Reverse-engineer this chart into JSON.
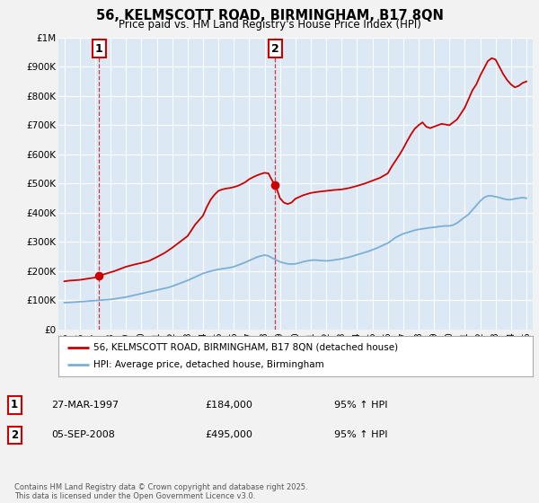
{
  "title": "56, KELMSCOTT ROAD, BIRMINGHAM, B17 8QN",
  "subtitle": "Price paid vs. HM Land Registry's House Price Index (HPI)",
  "bg_color": "#dce9f5",
  "fig_bg_color": "#f2f2f2",
  "red_color": "#cc0000",
  "blue_color": "#7bafd4",
  "grid_color": "#ffffff",
  "ylim": [
    0,
    1000000
  ],
  "yticks": [
    0,
    100000,
    200000,
    300000,
    400000,
    500000,
    600000,
    700000,
    800000,
    900000,
    1000000
  ],
  "ytick_labels": [
    "£0",
    "£100K",
    "£200K",
    "£300K",
    "£400K",
    "£500K",
    "£600K",
    "£700K",
    "£800K",
    "£900K",
    "£1M"
  ],
  "sale1_date": 1997.24,
  "sale1_price": 184000,
  "sale2_date": 2008.68,
  "sale2_price": 495000,
  "legend1": "56, KELMSCOTT ROAD, BIRMINGHAM, B17 8QN (detached house)",
  "legend2": "HPI: Average price, detached house, Birmingham",
  "footnote": "Contains HM Land Registry data © Crown copyright and database right 2025.\nThis data is licensed under the Open Government Licence v3.0.",
  "label1_date": "27-MAR-1997",
  "label1_price": "£184,000",
  "label1_hpi": "95% ↑ HPI",
  "label2_date": "05-SEP-2008",
  "label2_price": "£495,000",
  "label2_hpi": "95% ↑ HPI",
  "hpi_x": [
    1995.0,
    1995.25,
    1995.5,
    1995.75,
    1996.0,
    1996.25,
    1996.5,
    1996.75,
    1997.0,
    1997.25,
    1997.5,
    1997.75,
    1998.0,
    1998.25,
    1998.5,
    1998.75,
    1999.0,
    1999.25,
    1999.5,
    1999.75,
    2000.0,
    2000.25,
    2000.5,
    2000.75,
    2001.0,
    2001.25,
    2001.5,
    2001.75,
    2002.0,
    2002.25,
    2002.5,
    2002.75,
    2003.0,
    2003.25,
    2003.5,
    2003.75,
    2004.0,
    2004.25,
    2004.5,
    2004.75,
    2005.0,
    2005.25,
    2005.5,
    2005.75,
    2006.0,
    2006.25,
    2006.5,
    2006.75,
    2007.0,
    2007.25,
    2007.5,
    2007.75,
    2008.0,
    2008.25,
    2008.5,
    2008.75,
    2009.0,
    2009.25,
    2009.5,
    2009.75,
    2010.0,
    2010.25,
    2010.5,
    2010.75,
    2011.0,
    2011.25,
    2011.5,
    2011.75,
    2012.0,
    2012.25,
    2012.5,
    2012.75,
    2013.0,
    2013.25,
    2013.5,
    2013.75,
    2014.0,
    2014.25,
    2014.5,
    2014.75,
    2015.0,
    2015.25,
    2015.5,
    2015.75,
    2016.0,
    2016.25,
    2016.5,
    2016.75,
    2017.0,
    2017.25,
    2017.5,
    2017.75,
    2018.0,
    2018.25,
    2018.5,
    2018.75,
    2019.0,
    2019.25,
    2019.5,
    2019.75,
    2020.0,
    2020.25,
    2020.5,
    2020.75,
    2021.0,
    2021.25,
    2021.5,
    2021.75,
    2022.0,
    2022.25,
    2022.5,
    2022.75,
    2023.0,
    2023.25,
    2023.5,
    2023.75,
    2024.0,
    2024.25,
    2024.5,
    2024.75,
    2025.0
  ],
  "hpi_y": [
    92000,
    92500,
    93000,
    94000,
    95000,
    96000,
    97000,
    98000,
    99000,
    100000,
    101000,
    102000,
    103000,
    105000,
    107000,
    109000,
    111000,
    114000,
    117000,
    120000,
    123000,
    126000,
    129000,
    132000,
    135000,
    138000,
    141000,
    144000,
    148000,
    153000,
    158000,
    163000,
    168000,
    174000,
    180000,
    186000,
    192000,
    196000,
    200000,
    203000,
    206000,
    208000,
    210000,
    212000,
    215000,
    220000,
    225000,
    230000,
    236000,
    242000,
    248000,
    252000,
    255000,
    252000,
    245000,
    238000,
    232000,
    228000,
    225000,
    224000,
    225000,
    228000,
    232000,
    235000,
    237000,
    238000,
    237000,
    236000,
    235000,
    236000,
    238000,
    240000,
    242000,
    245000,
    248000,
    252000,
    256000,
    260000,
    264000,
    268000,
    273000,
    278000,
    284000,
    290000,
    296000,
    305000,
    315000,
    322000,
    328000,
    332000,
    336000,
    340000,
    343000,
    345000,
    347000,
    349000,
    350000,
    352000,
    354000,
    355000,
    355000,
    358000,
    365000,
    375000,
    385000,
    395000,
    410000,
    425000,
    440000,
    452000,
    458000,
    458000,
    455000,
    452000,
    448000,
    445000,
    445000,
    448000,
    450000,
    452000,
    450000
  ],
  "prop_x": [
    1995.0,
    1995.25,
    1995.5,
    1995.75,
    1996.0,
    1996.25,
    1996.5,
    1996.75,
    1997.0,
    1997.1,
    1997.24,
    1997.5,
    1997.75,
    1998.0,
    1998.25,
    1998.5,
    1999.0,
    1999.5,
    2000.0,
    2000.5,
    2001.0,
    2001.5,
    2002.0,
    2002.5,
    2003.0,
    2003.25,
    2003.5,
    2003.75,
    2004.0,
    2004.25,
    2004.5,
    2004.75,
    2005.0,
    2005.25,
    2005.5,
    2005.75,
    2006.0,
    2006.25,
    2006.5,
    2006.75,
    2007.0,
    2007.25,
    2007.5,
    2007.75,
    2008.0,
    2008.25,
    2008.5,
    2008.68,
    2008.75,
    2009.0,
    2009.25,
    2009.5,
    2009.75,
    2010.0,
    2010.5,
    2011.0,
    2011.5,
    2012.0,
    2012.5,
    2013.0,
    2013.5,
    2014.0,
    2014.5,
    2015.0,
    2015.5,
    2016.0,
    2016.25,
    2016.5,
    2016.75,
    2017.0,
    2017.25,
    2017.5,
    2017.75,
    2018.0,
    2018.25,
    2018.5,
    2018.75,
    2019.0,
    2019.5,
    2020.0,
    2020.5,
    2021.0,
    2021.25,
    2021.5,
    2021.75,
    2022.0,
    2022.25,
    2022.5,
    2022.75,
    2023.0,
    2023.25,
    2023.5,
    2023.75,
    2024.0,
    2024.25,
    2024.5,
    2024.75,
    2025.0
  ],
  "prop_y": [
    165000,
    167000,
    168000,
    169000,
    170000,
    172000,
    174000,
    176000,
    178000,
    180000,
    184000,
    188000,
    192000,
    196000,
    200000,
    205000,
    215000,
    222000,
    228000,
    235000,
    248000,
    262000,
    280000,
    300000,
    320000,
    340000,
    360000,
    375000,
    390000,
    420000,
    445000,
    462000,
    475000,
    480000,
    483000,
    485000,
    488000,
    492000,
    498000,
    505000,
    515000,
    522000,
    528000,
    533000,
    537000,
    535000,
    510000,
    495000,
    488000,
    450000,
    435000,
    430000,
    435000,
    448000,
    460000,
    468000,
    472000,
    475000,
    478000,
    480000,
    485000,
    492000,
    500000,
    510000,
    520000,
    535000,
    558000,
    578000,
    598000,
    620000,
    645000,
    668000,
    688000,
    700000,
    710000,
    695000,
    690000,
    695000,
    705000,
    700000,
    720000,
    760000,
    790000,
    820000,
    840000,
    870000,
    895000,
    920000,
    930000,
    925000,
    900000,
    875000,
    855000,
    840000,
    830000,
    835000,
    845000,
    850000
  ]
}
